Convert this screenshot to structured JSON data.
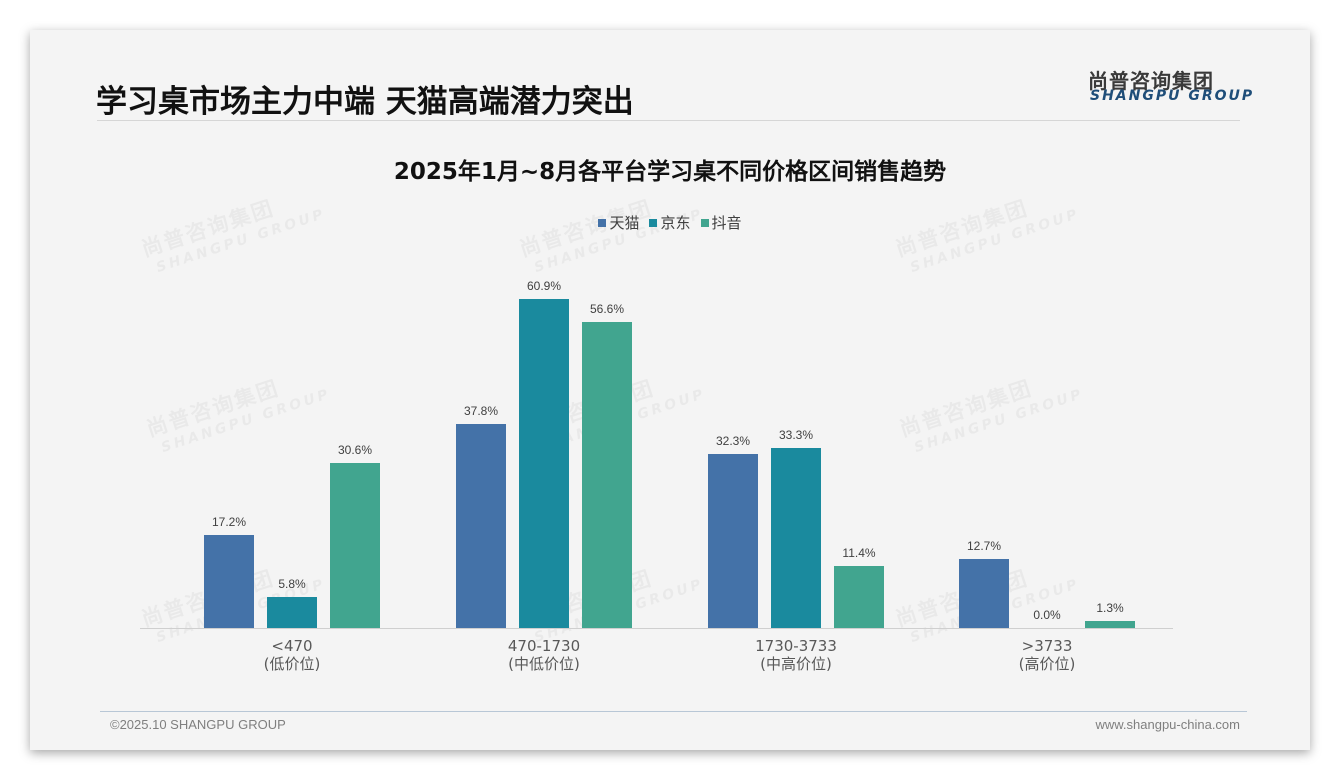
{
  "header": {
    "title": "学习桌市场主力中端 天猫高端潜力突出",
    "logo_cn": "尚普咨询集团",
    "logo_en": "SHANGPU GROUP"
  },
  "watermark": {
    "cn": "尚普咨询集团",
    "en": "SHANGPU GROUP"
  },
  "colors": {
    "tmall": "#4472a8",
    "jd": "#1a8a9e",
    "douyin": "#41a58f",
    "axis": "#cfcfcf"
  },
  "footer": {
    "copyright": "©2025.10 SHANGPU GROUP",
    "website": "www.shangpu-china.com"
  },
  "chart_data": {
    "type": "bar",
    "title": "2025年1月~8月各平台学习桌不同价格区间销售趋势",
    "xlabel": "",
    "ylabel": "",
    "ylim": [
      0,
      65
    ],
    "grid": false,
    "legend_position": "top",
    "categories": [
      "<470\n(低价位)",
      "470-1730\n(中低价位)",
      "1730-3733\n(中高价位)",
      ">3733\n(高价位)"
    ],
    "category_labels": [
      {
        "range": "<470",
        "tier": "(低价位)"
      },
      {
        "range": "470-1730",
        "tier": "(中低价位)"
      },
      {
        "range": "1730-3733",
        "tier": "(中高价位)"
      },
      {
        "range": ">3733",
        "tier": "(高价位)"
      }
    ],
    "series": [
      {
        "name": "天猫",
        "values": [
          17.2,
          37.8,
          32.3,
          12.7
        ],
        "labels": [
          "17.2%",
          "37.8%",
          "32.3%",
          "12.7%"
        ]
      },
      {
        "name": "京东",
        "values": [
          5.8,
          60.9,
          33.3,
          0.0
        ],
        "labels": [
          "5.8%",
          "60.9%",
          "33.3%",
          "0.0%"
        ]
      },
      {
        "name": "抖音",
        "values": [
          30.6,
          56.6,
          11.4,
          1.3
        ],
        "labels": [
          "30.6%",
          "56.6%",
          "11.4%",
          "1.3%"
        ]
      }
    ],
    "unit": "%"
  }
}
